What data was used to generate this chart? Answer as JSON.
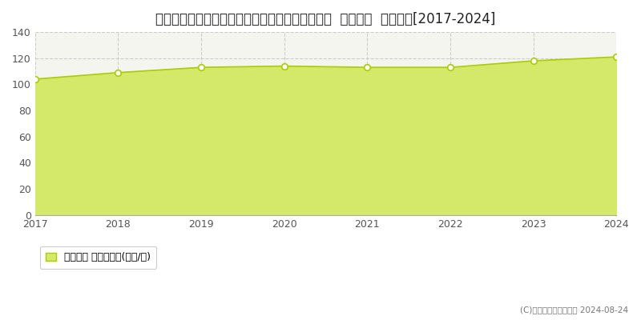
{
  "title": "埼玉県さいたま市中央区鈴谷２丁目７４４番１外  地価公示  地価推移[2017-2024]",
  "years": [
    2017,
    2018,
    2019,
    2020,
    2021,
    2022,
    2023,
    2024
  ],
  "values": [
    104,
    109,
    113,
    114,
    113,
    113,
    118,
    121
  ],
  "line_color": "#aacc00",
  "fill_color": "#d4e86a",
  "marker_facecolor": "#ffffff",
  "marker_edgecolor": "#aacc00",
  "background_color": "#ffffff",
  "plot_bg_color": "#f5f5f0",
  "grid_color": "#cccccc",
  "ylim": [
    0,
    140
  ],
  "yticks": [
    0,
    20,
    40,
    60,
    80,
    100,
    120,
    140
  ],
  "legend_label": "地価公示 平均坪単価(万円/坪)",
  "copyright_text": "(C)土地価格ドットコム 2024-08-24",
  "title_fontsize": 12,
  "tick_fontsize": 9,
  "legend_fontsize": 9
}
